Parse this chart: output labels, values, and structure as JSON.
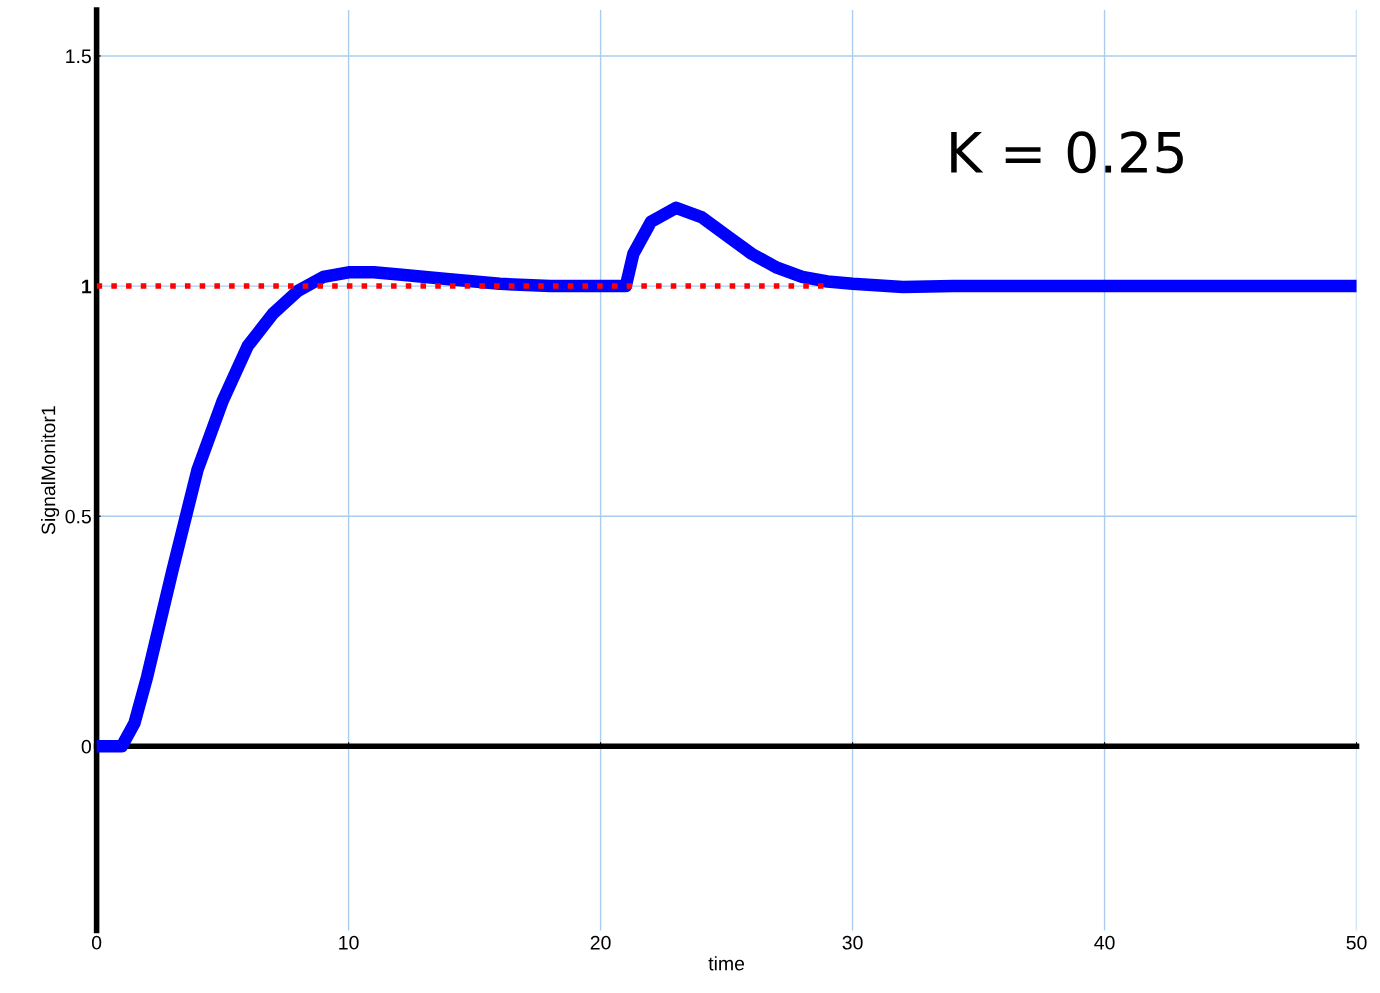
{
  "chart_data": {
    "type": "line",
    "xlabel": "time",
    "ylabel": "SignalMonitor1",
    "xlim": [
      0,
      50
    ],
    "ylim": [
      -0.4,
      1.6
    ],
    "xticks": [
      0,
      10,
      20,
      30,
      40,
      50
    ],
    "yticks": [
      0,
      0.5,
      {
        "value": 1,
        "label": "1"
      },
      1.5
    ],
    "grid": true,
    "legend": false,
    "annotations": [
      "K = 0.25"
    ],
    "series": [
      {
        "color": "#0000ff",
        "line_style": "solid",
        "x": [
          0,
          1,
          1.5,
          2,
          3,
          4,
          5,
          6,
          7,
          8,
          9,
          10,
          11,
          12,
          14,
          16,
          18,
          21,
          21.3,
          22,
          23,
          24,
          25,
          26,
          27,
          28,
          29,
          30,
          32,
          34,
          40,
          50
        ],
        "values": [
          0,
          0,
          0.05,
          0.15,
          0.38,
          0.6,
          0.75,
          0.87,
          0.94,
          0.99,
          1.02,
          1.03,
          1.03,
          1.025,
          1.015,
          1.005,
          1.0,
          1.0,
          1.07,
          1.14,
          1.17,
          1.15,
          1.11,
          1.07,
          1.04,
          1.02,
          1.01,
          1.005,
          0.998,
          1.0,
          1.0,
          1.0
        ]
      },
      {
        "color": "#ff0000",
        "line_style": "dotted",
        "x": [
          0,
          29
        ],
        "values": [
          1,
          1
        ]
      }
    ]
  }
}
